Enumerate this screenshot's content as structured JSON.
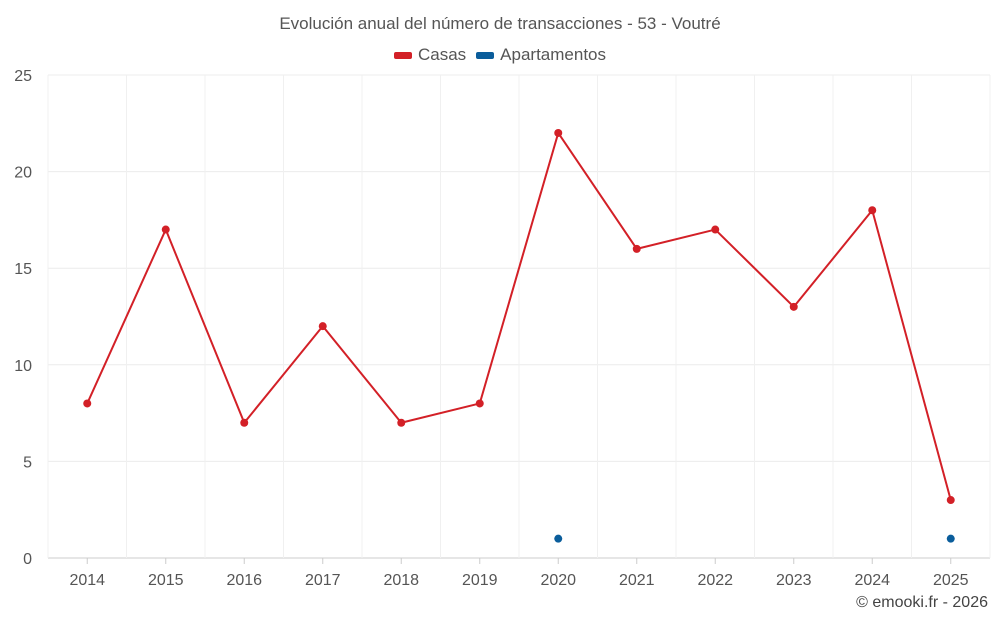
{
  "chart_data": {
    "type": "line",
    "title": "Evolución anual del número de transacciones - 53 - Voutré",
    "categories": [
      "2014",
      "2015",
      "2016",
      "2017",
      "2018",
      "2019",
      "2020",
      "2021",
      "2022",
      "2023",
      "2024",
      "2025"
    ],
    "series": [
      {
        "name": "Casas",
        "color": "#d32027",
        "style": "line+markers",
        "values": [
          8,
          17,
          7,
          12,
          7,
          8,
          22,
          16,
          17,
          13,
          18,
          3
        ]
      },
      {
        "name": "Apartamentos",
        "color": "#0a5d9b",
        "style": "markers",
        "values": [
          null,
          null,
          null,
          null,
          null,
          null,
          1,
          null,
          null,
          null,
          null,
          1
        ]
      }
    ],
    "xlabel": "",
    "ylabel": "",
    "ylim": [
      0,
      25
    ],
    "yticks": [
      0,
      5,
      10,
      15,
      20,
      25
    ],
    "grid": true,
    "legend_position": "top-center"
  },
  "credit": "© emooki.fr - 2026"
}
